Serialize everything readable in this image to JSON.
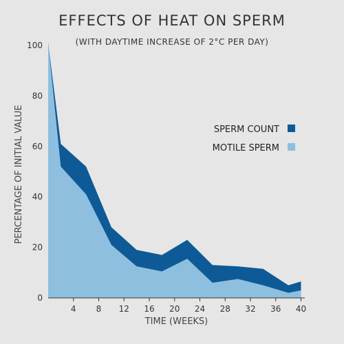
{
  "chart_data": {
    "type": "area",
    "title": "EFFECTS OF HEAT ON SPERM",
    "subtitle": "(WITH DAYTIME INCREASE OF 2°C PER DAY)",
    "xlabel": "TIME (WEEKS)",
    "ylabel": "PERCENTAGE OF INITIAL VALUE",
    "xlim": [
      0,
      40.6
    ],
    "ylim": [
      0,
      100
    ],
    "xticks": [
      4,
      8,
      12,
      16,
      20,
      24,
      28,
      32,
      36,
      40
    ],
    "yticks": [
      0,
      20,
      40,
      60,
      80,
      100
    ],
    "grid": false,
    "legend_position": "right",
    "series": [
      {
        "name": "SPERM COUNT",
        "color": "#0d5a96",
        "x": [
          0,
          2,
          6,
          10,
          14,
          18,
          22,
          26,
          30,
          34,
          38,
          40
        ],
        "values": [
          101,
          61,
          52,
          28,
          19,
          17,
          23,
          13,
          12.5,
          11.5,
          5,
          6.5
        ]
      },
      {
        "name": "MOTILE SPERM",
        "color": "#8fbfdf",
        "x": [
          0,
          2,
          6,
          10,
          14,
          18,
          22,
          26,
          30,
          34,
          38,
          40
        ],
        "values": [
          101,
          52,
          41,
          21,
          12.5,
          10.5,
          15.5,
          6,
          7.5,
          5,
          2,
          3
        ]
      }
    ]
  }
}
